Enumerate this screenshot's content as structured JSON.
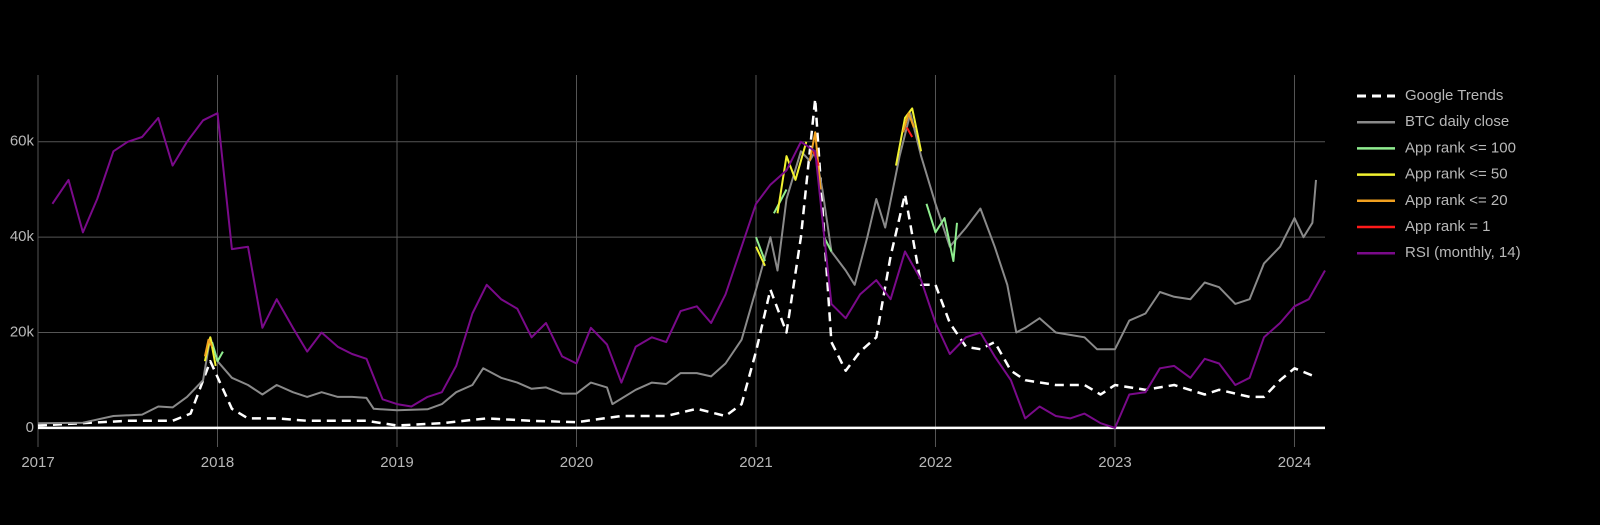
{
  "chart_data": {
    "type": "line",
    "xlim": [
      2017,
      2024.17
    ],
    "xticks": [
      2017,
      2018,
      2019,
      2020,
      2021,
      2022,
      2023,
      2024
    ],
    "ylim": [
      -4000,
      74000
    ],
    "yticks": [
      0,
      {
        "value": 20000,
        "label": "20k"
      },
      {
        "value": 40000,
        "label": "40k"
      },
      {
        "value": 60000,
        "label": "60k"
      }
    ],
    "grid": true,
    "zeroline": true,
    "legend": "right",
    "series": [
      {
        "name": "Google Trends",
        "color": "#ffffff",
        "line_style": "dash",
        "x": [
          2017.0,
          2017.5,
          2017.75,
          2017.85,
          2017.96,
          2018.08,
          2018.17,
          2018.33,
          2018.5,
          2018.83,
          2019.0,
          2019.25,
          2019.5,
          2019.75,
          2020.0,
          2020.25,
          2020.5,
          2020.67,
          2020.83,
          2020.92,
          2021.0,
          2021.08,
          2021.17,
          2021.25,
          2021.33,
          2021.42,
          2021.5,
          2021.58,
          2021.67,
          2021.75,
          2021.83,
          2021.92,
          2022.0,
          2022.08,
          2022.17,
          2022.25,
          2022.33,
          2022.42,
          2022.5,
          2022.67,
          2022.83,
          2022.92,
          2023.0,
          2023.17,
          2023.33,
          2023.5,
          2023.58,
          2023.75,
          2023.83,
          2023.92,
          2024.0,
          2024.1
        ],
        "values": [
          500,
          1500,
          1500,
          3000,
          14000,
          4000,
          2000,
          2000,
          1500,
          1500,
          500,
          1000,
          2000,
          1500,
          1200,
          2500,
          2500,
          4000,
          2500,
          5000,
          16000,
          29000,
          20000,
          40000,
          69000,
          18000,
          12000,
          16000,
          19000,
          36000,
          49000,
          30000,
          30000,
          22000,
          17000,
          16500,
          18000,
          12000,
          10000,
          9000,
          9000,
          7000,
          9000,
          8000,
          9000,
          7000,
          8000,
          6500,
          6500,
          10000,
          12500,
          11000
        ]
      },
      {
        "name": "BTC daily close",
        "color": "#8a8a8a",
        "line_style": "solid",
        "x": [
          2017.0,
          2017.25,
          2017.42,
          2017.58,
          2017.67,
          2017.75,
          2017.83,
          2017.92,
          2017.96,
          2018.0,
          2018.08,
          2018.17,
          2018.25,
          2018.33,
          2018.42,
          2018.5,
          2018.58,
          2018.67,
          2018.75,
          2018.83,
          2018.87,
          2019.0,
          2019.17,
          2019.25,
          2019.33,
          2019.42,
          2019.48,
          2019.58,
          2019.67,
          2019.75,
          2019.83,
          2019.92,
          2020.0,
          2020.08,
          2020.17,
          2020.2,
          2020.33,
          2020.42,
          2020.5,
          2020.58,
          2020.67,
          2020.75,
          2020.83,
          2020.92,
          2021.0,
          2021.08,
          2021.12,
          2021.17,
          2021.25,
          2021.3,
          2021.33,
          2021.37,
          2021.42,
          2021.5,
          2021.55,
          2021.62,
          2021.67,
          2021.72,
          2021.8,
          2021.86,
          2021.92,
          2022.0,
          2022.08,
          2022.17,
          2022.25,
          2022.33,
          2022.4,
          2022.45,
          2022.5,
          2022.58,
          2022.67,
          2022.75,
          2022.83,
          2022.9,
          2023.0,
          2023.08,
          2023.17,
          2023.25,
          2023.33,
          2023.42,
          2023.5,
          2023.58,
          2023.67,
          2023.75,
          2023.83,
          2023.92,
          2024.0,
          2024.05,
          2024.1,
          2024.12
        ],
        "values": [
          1000,
          1100,
          2500,
          2800,
          4500,
          4300,
          6500,
          10000,
          19000,
          14000,
          10500,
          9000,
          7000,
          9000,
          7500,
          6500,
          7500,
          6500,
          6500,
          6300,
          4000,
          3700,
          3900,
          5000,
          7500,
          9000,
          12500,
          10500,
          9500,
          8200,
          8500,
          7200,
          7200,
          9500,
          8500,
          5000,
          8000,
          9500,
          9200,
          11500,
          11500,
          10800,
          13500,
          18500,
          29000,
          40000,
          33000,
          48000,
          58000,
          56000,
          58000,
          50000,
          37000,
          33000,
          30000,
          40000,
          48000,
          42000,
          57000,
          66000,
          57000,
          47000,
          38000,
          42000,
          46000,
          38000,
          30000,
          20000,
          21000,
          23000,
          20000,
          19500,
          19000,
          16500,
          16500,
          22500,
          24000,
          28500,
          27500,
          27000,
          30500,
          29500,
          26000,
          27000,
          34500,
          38000,
          44000,
          40000,
          43000,
          52000
        ]
      },
      {
        "name": "App rank <= 100",
        "color": "#90ee90",
        "line_style": "solid",
        "x": [
          2017.97,
          2018.0,
          2018.03,
          2018.5,
          2021.0,
          2021.05,
          2021.07,
          2021.1,
          2021.17,
          2021.3,
          2021.38,
          2021.42,
          2021.6,
          2021.95,
          2022.0,
          2022.05,
          2022.1,
          2022.12
        ],
        "values": [
          18000,
          14000,
          16000,
          null,
          40000,
          35000,
          null,
          45000,
          50000,
          null,
          40000,
          37000,
          null,
          47000,
          41000,
          44000,
          35000,
          43000
        ]
      },
      {
        "name": "App rank <= 50",
        "color": "#f2f230",
        "line_style": "solid",
        "x": [
          2017.93,
          2017.96,
          2017.99,
          2020.5,
          2021.0,
          2021.05,
          2021.08,
          2021.12,
          2021.17,
          2021.22,
          2021.28,
          2021.5,
          2021.78,
          2021.83,
          2021.87,
          2021.92
        ],
        "values": [
          14000,
          19000,
          13000,
          null,
          38000,
          34000,
          null,
          45000,
          57000,
          52000,
          60000,
          null,
          55000,
          65000,
          67000,
          58000
        ]
      },
      {
        "name": "App rank <= 20",
        "color": "#f0a020",
        "line_style": "solid",
        "x": [
          2017.93,
          2017.95,
          2017.97,
          2020.5,
          2021.3,
          2021.33,
          2021.36,
          2021.6,
          2021.82,
          2021.85,
          2021.88
        ],
        "values": [
          15000,
          18500,
          17000,
          null,
          56000,
          62000,
          50000,
          null,
          62000,
          66000,
          63000
        ]
      },
      {
        "name": "App rank = 1",
        "color": "#ff1a1a",
        "line_style": "solid",
        "x": [
          2021.32,
          2021.35,
          2021.6,
          2021.84,
          2021.87
        ],
        "values": [
          58000,
          55000,
          null,
          63000,
          61000
        ]
      },
      {
        "name": "RSI (monthly, 14)",
        "color": "#7a0a8a",
        "line_style": "solid",
        "x": [
          2017.08,
          2017.17,
          2017.25,
          2017.33,
          2017.42,
          2017.5,
          2017.58,
          2017.67,
          2017.75,
          2017.83,
          2017.92,
          2018.0,
          2018.08,
          2018.17,
          2018.25,
          2018.33,
          2018.42,
          2018.5,
          2018.58,
          2018.67,
          2018.75,
          2018.83,
          2018.92,
          2019.0,
          2019.08,
          2019.17,
          2019.25,
          2019.33,
          2019.42,
          2019.5,
          2019.58,
          2019.67,
          2019.75,
          2019.83,
          2019.92,
          2020.0,
          2020.08,
          2020.17,
          2020.25,
          2020.33,
          2020.42,
          2020.5,
          2020.58,
          2020.67,
          2020.75,
          2020.83,
          2020.92,
          2021.0,
          2021.08,
          2021.17,
          2021.25,
          2021.33,
          2021.42,
          2021.5,
          2021.58,
          2021.67,
          2021.75,
          2021.83,
          2021.92,
          2022.0,
          2022.08,
          2022.17,
          2022.25,
          2022.33,
          2022.42,
          2022.5,
          2022.58,
          2022.67,
          2022.75,
          2022.83,
          2022.92,
          2023.0,
          2023.08,
          2023.17,
          2023.25,
          2023.33,
          2023.42,
          2023.5,
          2023.58,
          2023.67,
          2023.75,
          2023.83,
          2023.92,
          2024.0,
          2024.08,
          2024.17
        ],
        "values": [
          47000,
          52000,
          41000,
          48000,
          58000,
          60000,
          61000,
          65000,
          55000,
          60000,
          64500,
          66000,
          37500,
          38000,
          21000,
          27000,
          21000,
          16000,
          20000,
          17000,
          15500,
          14500,
          6000,
          5000,
          4500,
          6500,
          7500,
          13000,
          24000,
          30000,
          27000,
          25000,
          19000,
          22000,
          15000,
          13500,
          21000,
          17500,
          9500,
          17000,
          19000,
          18000,
          24500,
          25500,
          22000,
          28000,
          38000,
          47000,
          51000,
          54000,
          60000,
          58000,
          26000,
          23000,
          28000,
          31000,
          27000,
          37000,
          31000,
          22000,
          15500,
          19000,
          20000,
          15000,
          10000,
          2000,
          4500,
          2500,
          2000,
          3000,
          1000,
          0,
          7000,
          7500,
          12500,
          13000,
          10500,
          14500,
          13500,
          9000,
          10500,
          19000,
          22000,
          25500,
          27000,
          33000
        ]
      }
    ]
  }
}
